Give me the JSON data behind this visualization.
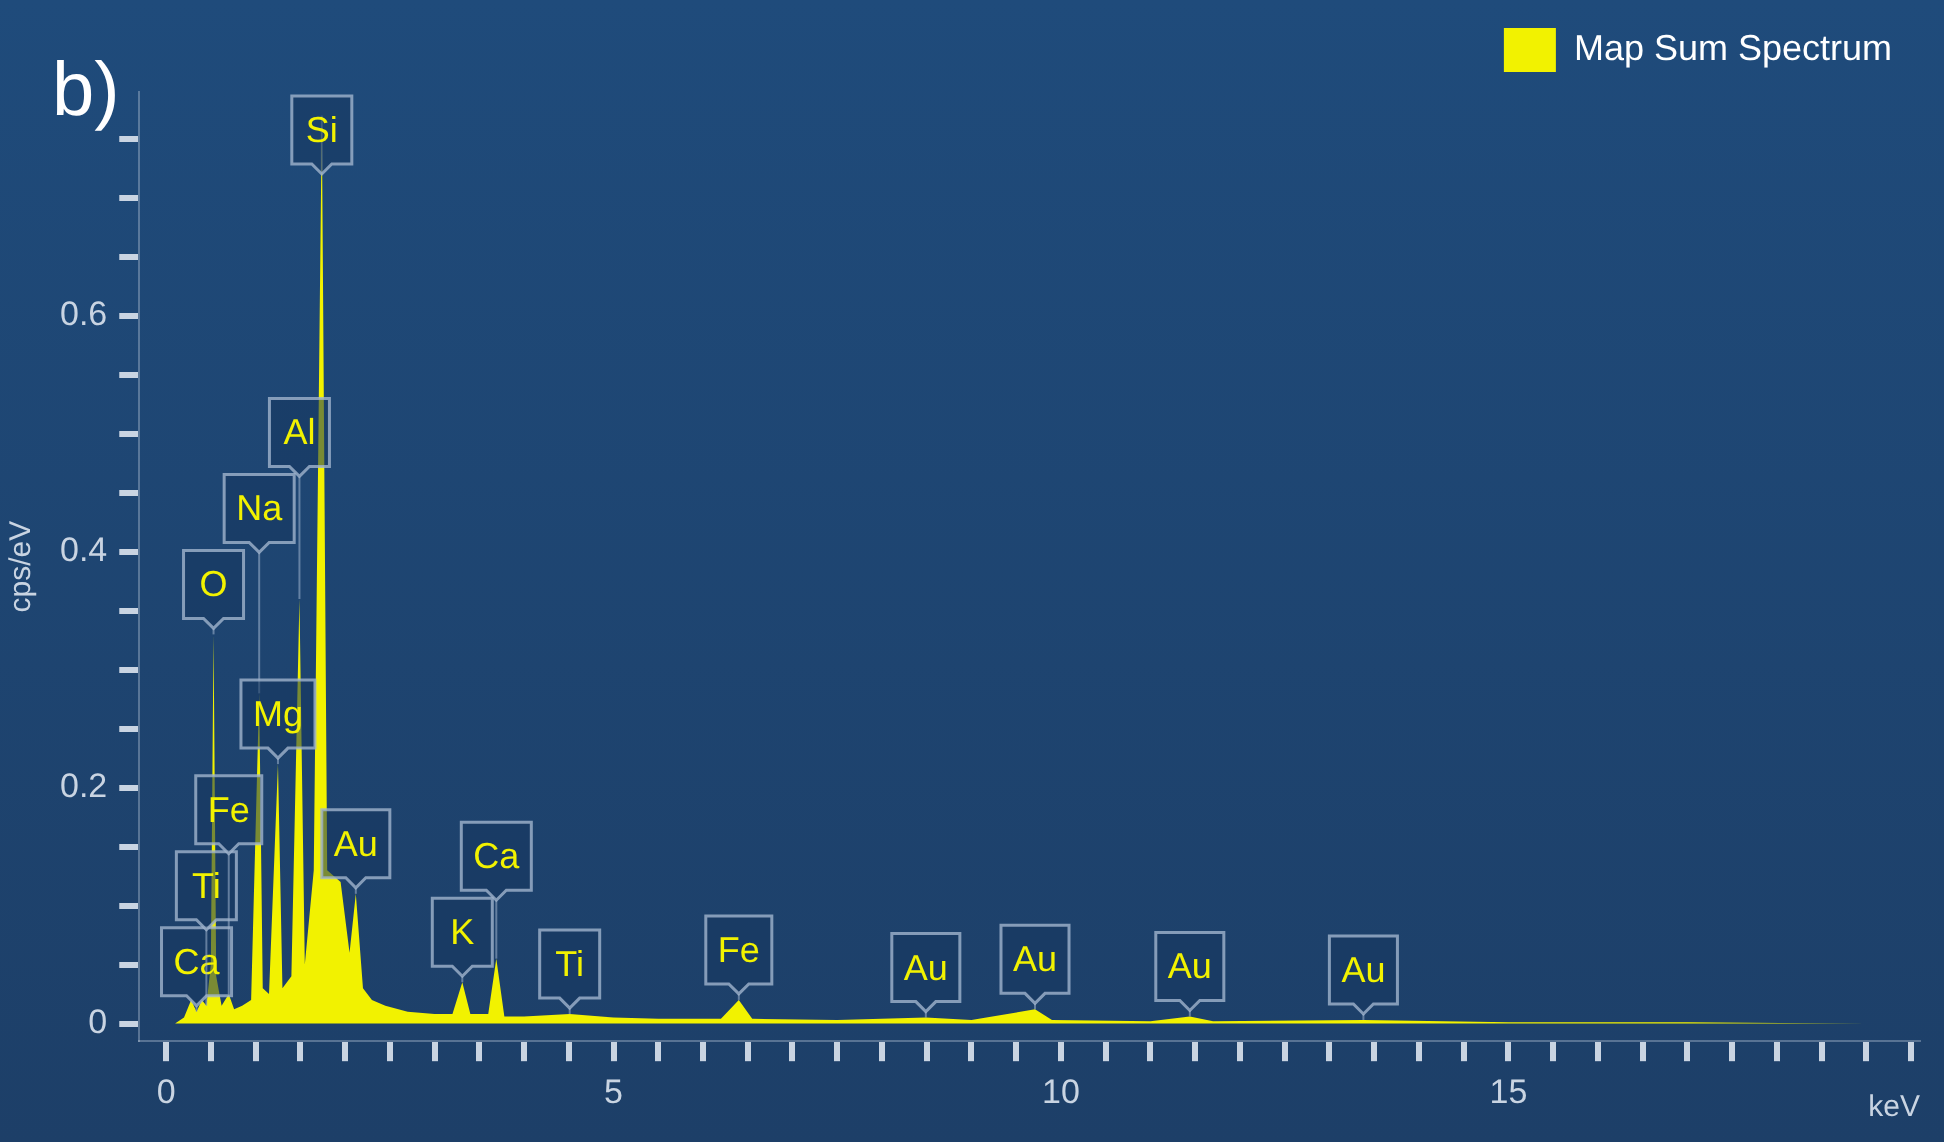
{
  "chart_data": {
    "type": "area",
    "ylabel": "cps/eV",
    "xlabel": "keV",
    "xlim": [
      -0.3,
      19.6
    ],
    "xticks": [
      0,
      {
        "value": 0.5,
        "label": null
      },
      {
        "value": 1,
        "label": null
      },
      {
        "value": 1.5,
        "label": null
      },
      {
        "value": 2,
        "label": null
      },
      {
        "value": 2.5,
        "label": null
      },
      {
        "value": 3,
        "label": null
      },
      {
        "value": 3.5,
        "label": null
      },
      {
        "value": 4,
        "label": null
      },
      {
        "value": 4.5,
        "label": null
      },
      5,
      {
        "value": 5.5,
        "label": null
      },
      {
        "value": 6,
        "label": null
      },
      {
        "value": 6.5,
        "label": null
      },
      {
        "value": 7,
        "label": null
      },
      {
        "value": 7.5,
        "label": null
      },
      {
        "value": 8,
        "label": null
      },
      {
        "value": 8.5,
        "label": null
      },
      {
        "value": 9,
        "label": null
      },
      {
        "value": 9.5,
        "label": null
      },
      10,
      {
        "value": 10.5,
        "label": null
      },
      {
        "value": 11,
        "label": null
      },
      {
        "value": 11.5,
        "label": null
      },
      {
        "value": 12,
        "label": null
      },
      {
        "value": 12.5,
        "label": null
      },
      {
        "value": 13,
        "label": null
      },
      {
        "value": 13.5,
        "label": null
      },
      {
        "value": 14,
        "label": null
      },
      {
        "value": 14.5,
        "label": null
      },
      15,
      {
        "value": 15.5,
        "label": null
      },
      {
        "value": 16,
        "label": null
      },
      {
        "value": 16.5,
        "label": null
      },
      {
        "value": 17,
        "label": null
      },
      {
        "value": 17.5,
        "label": null
      },
      {
        "value": 18,
        "label": null
      },
      {
        "value": 18.5,
        "label": null
      },
      {
        "value": 19,
        "label": null
      },
      {
        "value": 19.5,
        "label": null
      }
    ],
    "ylim": [
      -0.015,
      0.79
    ],
    "yticks": [
      0,
      {
        "value": 0.05,
        "label": null
      },
      {
        "value": 0.1,
        "label": null
      },
      {
        "value": 0.15,
        "label": null
      },
      0.2,
      {
        "value": 0.25,
        "label": null
      },
      {
        "value": 0.3,
        "label": null
      },
      {
        "value": 0.35,
        "label": null
      },
      0.4,
      {
        "value": 0.45,
        "label": null
      },
      {
        "value": 0.5,
        "label": null
      },
      {
        "value": 0.55,
        "label": null
      },
      0.6,
      {
        "value": 0.65,
        "label": null
      },
      {
        "value": 0.7,
        "label": null
      },
      {
        "value": 0.75,
        "label": null
      }
    ],
    "grid": false,
    "legend": "top right",
    "marker": "none",
    "series": [
      {
        "name": "Map Sum Spectrum",
        "color": "#f2f200",
        "x": [
          0.1,
          0.2,
          0.28,
          0.34,
          0.4,
          0.45,
          0.5,
          0.53,
          0.56,
          0.62,
          0.7,
          0.76,
          0.85,
          0.95,
          1.04,
          1.08,
          1.15,
          1.25,
          1.3,
          1.4,
          1.49,
          1.55,
          1.65,
          1.74,
          1.8,
          1.95,
          2.05,
          2.12,
          2.2,
          2.3,
          2.45,
          2.7,
          3.0,
          3.2,
          3.31,
          3.4,
          3.6,
          3.69,
          3.78,
          4.0,
          4.51,
          5.0,
          5.5,
          6.2,
          6.4,
          6.55,
          7.5,
          8.49,
          9.0,
          9.71,
          9.9,
          11.0,
          11.44,
          11.7,
          13.38,
          15,
          17,
          19
        ],
        "values": [
          0,
          0.005,
          0.02,
          0.01,
          0.02,
          0.015,
          0.05,
          0.33,
          0.04,
          0.015,
          0.025,
          0.012,
          0.015,
          0.02,
          0.28,
          0.03,
          0.025,
          0.22,
          0.03,
          0.04,
          0.36,
          0.05,
          0.13,
          0.77,
          0.13,
          0.12,
          0.06,
          0.11,
          0.03,
          0.02,
          0.015,
          0.01,
          0.008,
          0.008,
          0.035,
          0.008,
          0.008,
          0.055,
          0.006,
          0.006,
          0.008,
          0.005,
          0.004,
          0.004,
          0.02,
          0.004,
          0.003,
          0.005,
          0.003,
          0.012,
          0.003,
          0.002,
          0.006,
          0.002,
          0.003,
          0.001,
          0.001,
          0
        ]
      }
    ],
    "annotations": [
      "b)",
      {
        "text": "Ca",
        "x": 0.34,
        "y": 0.01
      },
      {
        "text": "Ti",
        "x": 0.45,
        "y": 0.015
      },
      {
        "text": "O",
        "x": 0.53,
        "y": 0.33
      },
      {
        "text": "Fe",
        "x": 0.7,
        "y": 0.025
      },
      {
        "text": "Na",
        "x": 1.04,
        "y": 0.28
      },
      {
        "text": "Mg",
        "x": 1.25,
        "y": 0.22
      },
      {
        "text": "Al",
        "x": 1.49,
        "y": 0.36
      },
      {
        "text": "Si",
        "x": 1.74,
        "y": 0.77
      },
      {
        "text": "Au",
        "x": 2.12,
        "y": 0.11
      },
      {
        "text": "K",
        "x": 3.31,
        "y": 0.035
      },
      {
        "text": "Ca",
        "x": 3.69,
        "y": 0.055
      },
      {
        "text": "Ti",
        "x": 4.51,
        "y": 0.008
      },
      {
        "text": "Fe",
        "x": 6.4,
        "y": 0.02
      },
      {
        "text": "Au",
        "x": 8.49,
        "y": 0.005
      },
      {
        "text": "Au",
        "x": 9.71,
        "y": 0.012
      },
      {
        "text": "Au",
        "x": 11.44,
        "y": 0.006
      },
      {
        "text": "Au",
        "x": 13.38,
        "y": 0.003
      }
    ]
  }
}
